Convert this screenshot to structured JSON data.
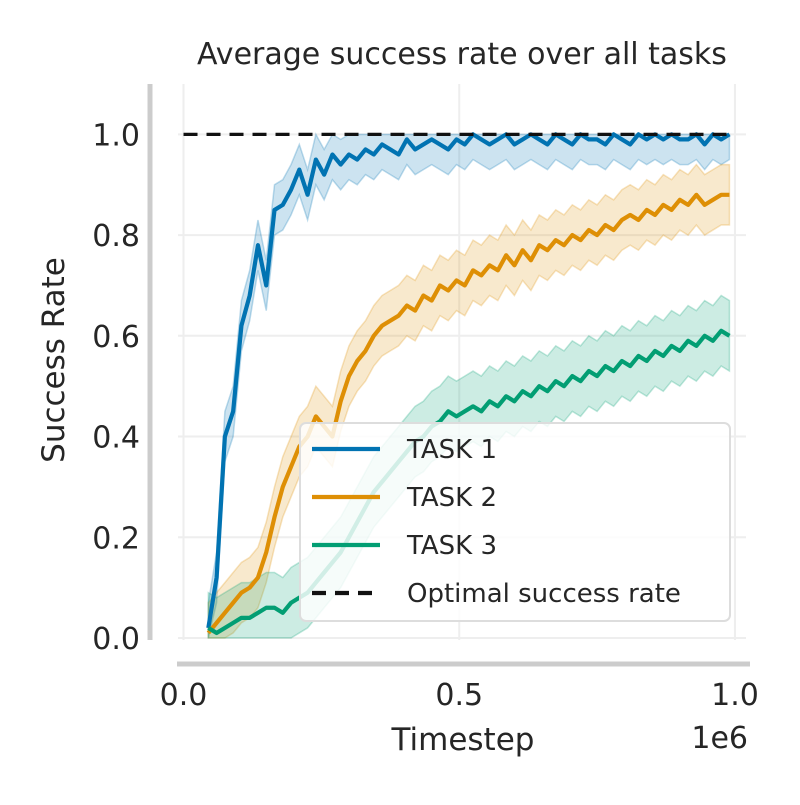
{
  "chart_data": {
    "type": "line",
    "title": "Average success rate over all tasks",
    "xlabel": "Timestep",
    "ylabel": "Success Rate",
    "x_offset_label": "1e6",
    "xlim": [
      -0.01,
      1.02
    ],
    "ylim": [
      -0.004,
      1.1
    ],
    "xticks": [
      0.0,
      0.5,
      1.0
    ],
    "xtick_labels": [
      "0.0",
      "0.5",
      "1.0"
    ],
    "yticks": [
      0.0,
      0.2,
      0.4,
      0.6,
      0.8,
      1.0
    ],
    "ytick_labels": [
      "0.0",
      "0.2",
      "0.4",
      "0.6",
      "0.8",
      "1.0"
    ],
    "grid": true,
    "legend_position": "lower-right",
    "x": [
      0.045,
      0.06,
      0.075,
      0.09,
      0.105,
      0.12,
      0.135,
      0.15,
      0.165,
      0.18,
      0.195,
      0.21,
      0.225,
      0.24,
      0.255,
      0.27,
      0.285,
      0.3,
      0.315,
      0.33,
      0.345,
      0.36,
      0.375,
      0.39,
      0.405,
      0.42,
      0.435,
      0.45,
      0.465,
      0.48,
      0.495,
      0.51,
      0.525,
      0.54,
      0.555,
      0.57,
      0.585,
      0.6,
      0.615,
      0.63,
      0.645,
      0.66,
      0.675,
      0.69,
      0.705,
      0.72,
      0.735,
      0.75,
      0.765,
      0.78,
      0.795,
      0.81,
      0.825,
      0.84,
      0.855,
      0.87,
      0.885,
      0.9,
      0.915,
      0.93,
      0.945,
      0.96,
      0.975,
      0.99
    ],
    "series": [
      {
        "name": "TASK 1",
        "color": "#0173b2",
        "values": [
          0.02,
          0.12,
          0.4,
          0.45,
          0.62,
          0.68,
          0.78,
          0.7,
          0.85,
          0.86,
          0.89,
          0.93,
          0.88,
          0.95,
          0.92,
          0.96,
          0.94,
          0.96,
          0.95,
          0.97,
          0.96,
          0.98,
          0.97,
          0.96,
          0.99,
          0.97,
          0.98,
          0.99,
          0.98,
          0.97,
          0.99,
          0.98,
          1.0,
          0.99,
          0.98,
          0.99,
          1.0,
          0.98,
          0.99,
          1.0,
          0.99,
          0.98,
          1.0,
          0.99,
          0.98,
          1.0,
          0.99,
          0.99,
          0.98,
          1.0,
          0.99,
          0.98,
          1.0,
          0.99,
          1.0,
          0.99,
          1.0,
          0.99,
          0.99,
          1.0,
          0.98,
          1.0,
          0.99,
          1.0
        ],
        "band": 0.05
      },
      {
        "name": "TASK 2",
        "color": "#de8f05",
        "values": [
          0.01,
          0.03,
          0.05,
          0.07,
          0.09,
          0.1,
          0.12,
          0.17,
          0.24,
          0.3,
          0.34,
          0.38,
          0.4,
          0.44,
          0.42,
          0.4,
          0.47,
          0.52,
          0.55,
          0.57,
          0.6,
          0.62,
          0.63,
          0.64,
          0.66,
          0.65,
          0.68,
          0.67,
          0.7,
          0.69,
          0.71,
          0.7,
          0.73,
          0.72,
          0.74,
          0.73,
          0.76,
          0.74,
          0.77,
          0.75,
          0.78,
          0.77,
          0.79,
          0.78,
          0.8,
          0.79,
          0.81,
          0.8,
          0.82,
          0.81,
          0.83,
          0.84,
          0.83,
          0.85,
          0.84,
          0.86,
          0.85,
          0.87,
          0.86,
          0.88,
          0.86,
          0.87,
          0.88,
          0.88
        ],
        "band": 0.06
      },
      {
        "name": "TASK 3",
        "color": "#029e73",
        "values": [
          0.02,
          0.01,
          0.02,
          0.03,
          0.04,
          0.04,
          0.05,
          0.06,
          0.06,
          0.05,
          0.07,
          0.08,
          0.09,
          0.11,
          0.13,
          0.15,
          0.17,
          0.2,
          0.23,
          0.26,
          0.29,
          0.31,
          0.33,
          0.35,
          0.37,
          0.39,
          0.4,
          0.42,
          0.43,
          0.45,
          0.44,
          0.45,
          0.46,
          0.45,
          0.47,
          0.46,
          0.48,
          0.47,
          0.49,
          0.48,
          0.5,
          0.49,
          0.51,
          0.5,
          0.52,
          0.51,
          0.53,
          0.52,
          0.54,
          0.53,
          0.55,
          0.54,
          0.56,
          0.55,
          0.57,
          0.56,
          0.58,
          0.57,
          0.59,
          0.58,
          0.6,
          0.59,
          0.61,
          0.6
        ],
        "band": 0.07
      },
      {
        "name": "Optimal success rate",
        "color": "#111111",
        "style": "dashed",
        "x": [
          0.0,
          1.0
        ],
        "values": [
          1.0,
          1.0
        ]
      }
    ]
  }
}
